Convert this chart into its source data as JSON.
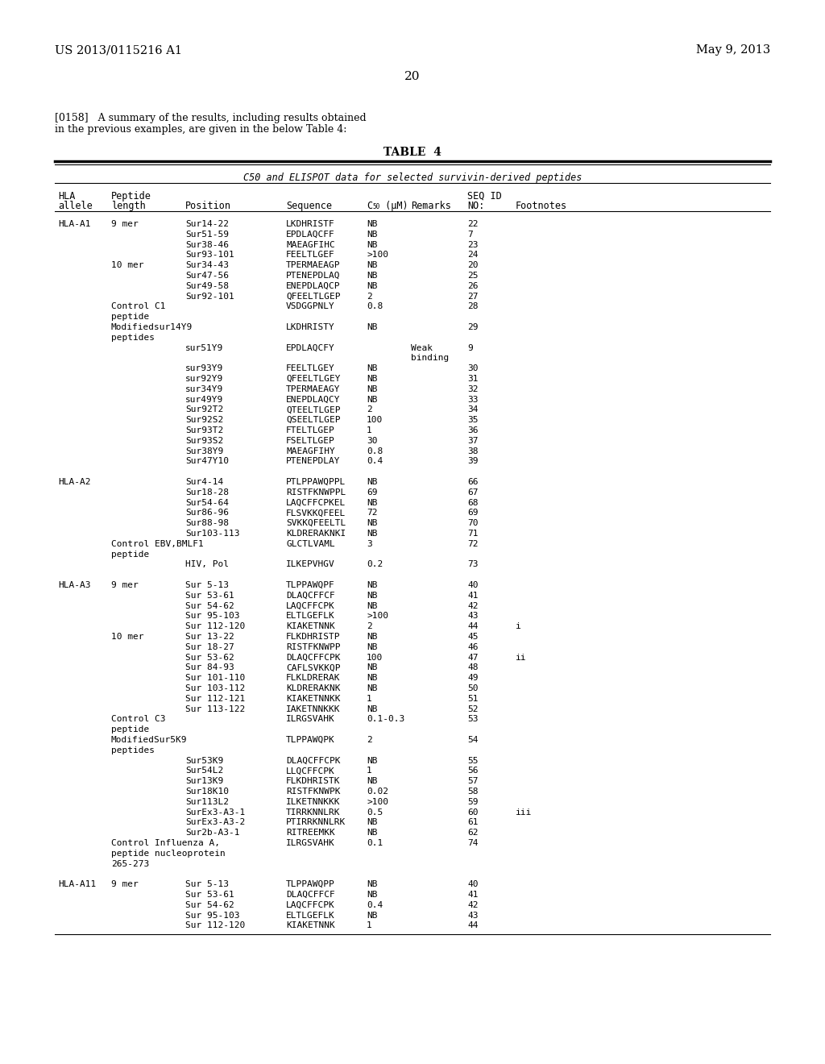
{
  "header_left": "US 2013/0115216 A1",
  "header_right": "May 9, 2013",
  "page_number": "20",
  "para_line1": "[0158]   A summary of the results, including results obtained",
  "para_line2": "in the previous examples, are given in the below Table 4:",
  "table_title": "TABLE  4",
  "table_subtitle": "C50 and ELISPOT data for selected survivin-derived peptides",
  "rows": [
    [
      "HLA-A1",
      "9 mer",
      "Sur14-22",
      "LKDHRISTF",
      "NB",
      "",
      "22",
      ""
    ],
    [
      "",
      "",
      "Sur51-59",
      "EPDLAQCFF",
      "NB",
      "",
      "7",
      ""
    ],
    [
      "",
      "",
      "Sur38-46",
      "MAEAGFIHC",
      "NB",
      "",
      "23",
      ""
    ],
    [
      "",
      "",
      "Sur93-101",
      "FEELTLGEF",
      ">100",
      "",
      "24",
      ""
    ],
    [
      "",
      "10 mer",
      "Sur34-43",
      "TPERMAEAGP",
      "NB",
      "",
      "20",
      ""
    ],
    [
      "",
      "",
      "Sur47-56",
      "PTENEPDLAQ",
      "NB",
      "",
      "25",
      ""
    ],
    [
      "",
      "",
      "Sur49-58",
      "ENEPDLAQCP",
      "NB",
      "",
      "26",
      ""
    ],
    [
      "",
      "",
      "Sur92-101",
      "QFEELTLGEP",
      "2",
      "",
      "27",
      ""
    ],
    [
      "",
      "Control C1",
      "",
      "VSDGGPNLY",
      "0.8",
      "",
      "28",
      ""
    ],
    [
      "",
      "peptide",
      "",
      "",
      "",
      "",
      "",
      ""
    ],
    [
      "",
      "Modifiedsur14Y9",
      "",
      "LKDHRISTY",
      "NB",
      "",
      "29",
      ""
    ],
    [
      "",
      "peptides",
      "",
      "",
      "",
      "",
      "",
      ""
    ],
    [
      "",
      "",
      "sur51Y9",
      "EPDLAQCFY",
      "",
      "Weak",
      "9",
      ""
    ],
    [
      "",
      "",
      "",
      "",
      "",
      "binding",
      "",
      ""
    ],
    [
      "",
      "",
      "sur93Y9",
      "FEELTLGEY",
      "NB",
      "",
      "30",
      ""
    ],
    [
      "",
      "",
      "sur92Y9",
      "QFEELTLGEY",
      "NB",
      "",
      "31",
      ""
    ],
    [
      "",
      "",
      "sur34Y9",
      "TPERMAEAGY",
      "NB",
      "",
      "32",
      ""
    ],
    [
      "",
      "",
      "sur49Y9",
      "ENEPDLAQCY",
      "NB",
      "",
      "33",
      ""
    ],
    [
      "",
      "",
      "Sur92T2",
      "QTEELTLGEP",
      "2",
      "",
      "34",
      ""
    ],
    [
      "",
      "",
      "Sur92S2",
      "QSEELTLGEP",
      "100",
      "",
      "35",
      ""
    ],
    [
      "",
      "",
      "Sur93T2",
      "FTELTLGEP",
      "1",
      "",
      "36",
      ""
    ],
    [
      "",
      "",
      "Sur93S2",
      "FSELTLGEP",
      "30",
      "",
      "37",
      ""
    ],
    [
      "",
      "",
      "Sur38Y9",
      "MAEAGFIHY",
      "0.8",
      "",
      "38",
      ""
    ],
    [
      "",
      "",
      "Sur47Y10",
      "PTENEPDLAY",
      "0.4",
      "",
      "39",
      ""
    ],
    [
      "",
      "",
      "",
      "",
      "",
      "",
      "",
      ""
    ],
    [
      "HLA-A2",
      "",
      "Sur4-14",
      "PTLPPAWQPPL",
      "NB",
      "",
      "66",
      ""
    ],
    [
      "",
      "",
      "Sur18-28",
      "RISTFKNWPPL",
      "69",
      "",
      "67",
      ""
    ],
    [
      "",
      "",
      "Sur54-64",
      "LAQCFFCPKEL",
      "NB",
      "",
      "68",
      ""
    ],
    [
      "",
      "",
      "Sur86-96",
      "FLSVKKQFEEL",
      "72",
      "",
      "69",
      ""
    ],
    [
      "",
      "",
      "Sur88-98",
      "SVKKQFEELTL",
      "NB",
      "",
      "70",
      ""
    ],
    [
      "",
      "",
      "Sur103-113",
      "KLDRERAKNKI",
      "NB",
      "",
      "71",
      ""
    ],
    [
      "",
      "Control EBV,BMLF1",
      "",
      "GLCTLVAML",
      "3",
      "",
      "72",
      ""
    ],
    [
      "",
      "peptide",
      "",
      "",
      "",
      "",
      "",
      ""
    ],
    [
      "",
      "",
      "HIV, Pol",
      "ILKEPVHGV",
      "0.2",
      "",
      "73",
      ""
    ],
    [
      "",
      "",
      "",
      "",
      "",
      "",
      "",
      ""
    ],
    [
      "HLA-A3",
      "9 mer",
      "Sur 5-13",
      "TLPPAWQPF",
      "NB",
      "",
      "40",
      ""
    ],
    [
      "",
      "",
      "Sur 53-61",
      "DLAQCFFCF",
      "NB",
      "",
      "41",
      ""
    ],
    [
      "",
      "",
      "Sur 54-62",
      "LAQCFFCPK",
      "NB",
      "",
      "42",
      ""
    ],
    [
      "",
      "",
      "Sur 95-103",
      "ELTLGEFLK",
      ">100",
      "",
      "43",
      ""
    ],
    [
      "",
      "",
      "Sur 112-120",
      "KIAKETNNK",
      "2",
      "",
      "44",
      "i"
    ],
    [
      "",
      "10 mer",
      "Sur 13-22",
      "FLKDHRISTP",
      "NB",
      "",
      "45",
      ""
    ],
    [
      "",
      "",
      "Sur 18-27",
      "RISTFKNWPP",
      "NB",
      "",
      "46",
      ""
    ],
    [
      "",
      "",
      "Sur 53-62",
      "DLAQCFFCPK",
      "100",
      "",
      "47",
      "ii"
    ],
    [
      "",
      "",
      "Sur 84-93",
      "CAFLSVKKQP",
      "NB",
      "",
      "48",
      ""
    ],
    [
      "",
      "",
      "Sur 101-110",
      "FLKLDRERAK",
      "NB",
      "",
      "49",
      ""
    ],
    [
      "",
      "",
      "Sur 103-112",
      "KLDRERAKNK",
      "NB",
      "",
      "50",
      ""
    ],
    [
      "",
      "",
      "Sur 112-121",
      "KIAKETNNKK",
      "1",
      "",
      "51",
      ""
    ],
    [
      "",
      "",
      "Sur 113-122",
      "IAKETNNKKK",
      "NB",
      "",
      "52",
      ""
    ],
    [
      "",
      "Control C3",
      "",
      "ILRGSVAHK",
      "0.1-0.3",
      "",
      "53",
      ""
    ],
    [
      "",
      "peptide",
      "",
      "",
      "",
      "",
      "",
      ""
    ],
    [
      "",
      "ModifiedSur5K9",
      "",
      "TLPPAWQPK",
      "2",
      "",
      "54",
      ""
    ],
    [
      "",
      "peptides",
      "",
      "",
      "",
      "",
      "",
      ""
    ],
    [
      "",
      "",
      "Sur53K9",
      "DLAQCFFCPK",
      "NB",
      "",
      "55",
      ""
    ],
    [
      "",
      "",
      "Sur54L2",
      "LLQCFFCPK",
      "1",
      "",
      "56",
      ""
    ],
    [
      "",
      "",
      "Sur13K9",
      "FLKDHRISTK",
      "NB",
      "",
      "57",
      ""
    ],
    [
      "",
      "",
      "Sur18K10",
      "RISTFKNWPK",
      "0.02",
      "",
      "58",
      ""
    ],
    [
      "",
      "",
      "Sur113L2",
      "ILKETNNKKK",
      ">100",
      "",
      "59",
      ""
    ],
    [
      "",
      "",
      "SurEx3-A3-1",
      "TIRRKNNLRK",
      "0.5",
      "",
      "60",
      "iii"
    ],
    [
      "",
      "",
      "SurEx3-A3-2",
      "PTIRRKNNLRK",
      "NB",
      "",
      "61",
      ""
    ],
    [
      "",
      "",
      "Sur2b-A3-1",
      "RITREEMKK",
      "NB",
      "",
      "62",
      ""
    ],
    [
      "",
      "Control Influenza A,",
      "",
      "ILRGSVAHK",
      "0.1",
      "",
      "74",
      ""
    ],
    [
      "",
      "peptide nucleoprotein",
      "",
      "",
      "",
      "",
      "",
      ""
    ],
    [
      "",
      "265-273",
      "",
      "",
      "",
      "",
      "",
      ""
    ],
    [
      "",
      "",
      "",
      "",
      "",
      "",
      "",
      ""
    ],
    [
      "HLA-A11",
      "9 mer",
      "Sur 5-13",
      "TLPPAWQPP",
      "NB",
      "",
      "40",
      ""
    ],
    [
      "",
      "",
      "Sur 53-61",
      "DLAQCFFCF",
      "NB",
      "",
      "41",
      ""
    ],
    [
      "",
      "",
      "Sur 54-62",
      "LAQCFFCPK",
      "0.4",
      "",
      "42",
      ""
    ],
    [
      "",
      "",
      "Sur 95-103",
      "ELTLGEFLK",
      "NB",
      "",
      "43",
      ""
    ],
    [
      "",
      "",
      "Sur 112-120",
      "KIAKETNNK",
      "1",
      "",
      "44",
      ""
    ]
  ]
}
